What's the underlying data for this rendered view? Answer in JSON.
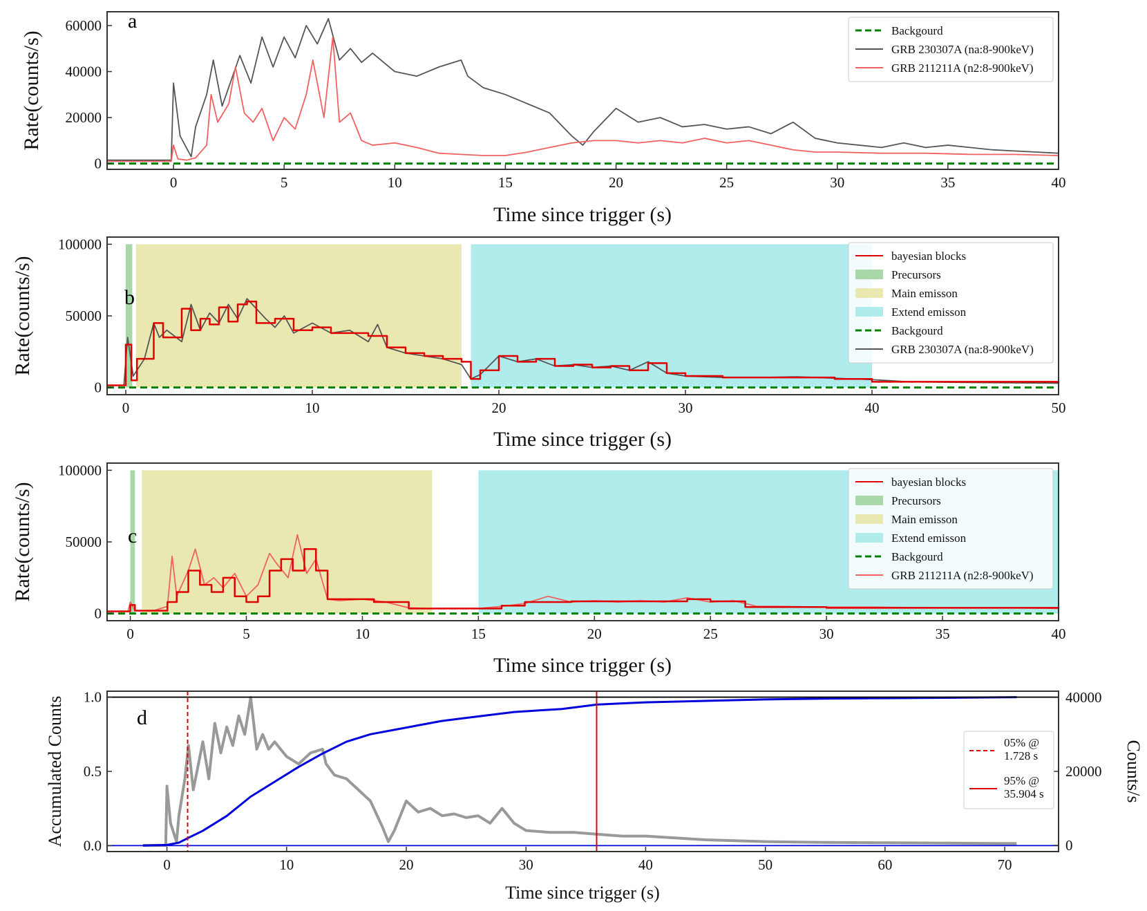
{
  "colors": {
    "background_green": "#008000",
    "grb230307a": "#555555",
    "grb211211a": "#f26060",
    "bayesian": "#e00000",
    "precursor": "#a8d8a8",
    "main": "#e8e8b0",
    "extend": "#b0ecec",
    "accum": "#0000dd",
    "counts": "#999999",
    "marker": "#e00000"
  },
  "chart_data": [
    {
      "id": "a",
      "type": "line",
      "panel_letter": "a",
      "xlabel": "Time since trigger (s)",
      "ylabel": "Rate(counts/s)",
      "xlim": [
        -3,
        40
      ],
      "ylim": [
        -2500,
        66000
      ],
      "xticks": [
        0,
        5,
        10,
        15,
        20,
        25,
        30,
        35,
        40
      ],
      "yticks": [
        0,
        20000,
        40000,
        60000
      ],
      "legend_position": "top-right",
      "legend": [
        "Backgourd",
        "GRB 230307A (na:8-900keV)",
        "GRB 211211A (n2:8-900keV)"
      ],
      "series": [
        {
          "name": "Backgourd",
          "style": "dashed",
          "color": "#008000",
          "x": [
            -3,
            40
          ],
          "y": [
            0,
            0
          ]
        },
        {
          "name": "GRB 230307A (na:8-900keV)",
          "color": "#555555",
          "x": [
            -3,
            -0.1,
            0,
            0.3,
            0.8,
            1,
            1.5,
            1.8,
            2.2,
            3,
            3.5,
            4,
            4.5,
            5,
            5.5,
            6,
            6.5,
            7,
            7.5,
            8,
            8.5,
            9,
            10,
            11,
            12,
            13,
            13.3,
            14,
            15,
            16,
            17,
            18,
            18.5,
            19,
            20,
            21,
            22,
            23,
            24,
            25,
            26,
            27,
            28,
            29,
            30,
            31,
            32,
            33,
            34,
            35,
            36,
            37,
            38,
            39,
            40
          ],
          "y": [
            1500,
            1500,
            35000,
            12000,
            3000,
            16000,
            30000,
            45000,
            25000,
            47000,
            35000,
            55000,
            42000,
            55000,
            46000,
            60000,
            52000,
            63000,
            45000,
            50000,
            44000,
            48000,
            40000,
            38000,
            42000,
            45000,
            38000,
            33000,
            30000,
            26000,
            22000,
            12000,
            8000,
            14000,
            24000,
            18000,
            20000,
            16000,
            17000,
            15000,
            16000,
            13000,
            18000,
            11000,
            9000,
            8000,
            7000,
            9000,
            7000,
            8000,
            7000,
            6000,
            5500,
            5000,
            4500
          ]
        },
        {
          "name": "GRB 211211A (n2:8-900keV)",
          "color": "#f26060",
          "x": [
            -3,
            -0.1,
            0,
            0.2,
            0.6,
            1,
            1.5,
            1.7,
            2,
            2.5,
            2.8,
            3.2,
            3.6,
            4,
            4.5,
            5,
            5.5,
            6,
            6.3,
            6.8,
            7.2,
            7.5,
            8,
            8.5,
            9,
            10,
            11,
            12,
            13,
            14,
            15,
            16,
            17,
            18,
            19,
            20,
            21,
            22,
            23,
            24,
            25,
            26,
            27,
            28,
            29,
            30,
            32,
            34,
            36,
            38,
            40
          ],
          "y": [
            1000,
            1000,
            8000,
            2000,
            1500,
            2500,
            8000,
            30000,
            18000,
            26000,
            42000,
            22000,
            18000,
            24000,
            10000,
            20000,
            15000,
            30000,
            45000,
            20000,
            55000,
            18000,
            22000,
            10000,
            8000,
            9000,
            7000,
            4500,
            4000,
            3500,
            3500,
            5000,
            7000,
            9000,
            10000,
            10000,
            9000,
            10000,
            9000,
            11000,
            9000,
            10000,
            8000,
            6000,
            5000,
            5000,
            4500,
            4500,
            4000,
            4000,
            3500
          ]
        }
      ]
    },
    {
      "id": "b",
      "type": "line",
      "panel_letter": "b",
      "xlabel": "Time since trigger (s)",
      "ylabel": "Rate(counts/s)",
      "xlim": [
        -1,
        50
      ],
      "ylim": [
        -5000,
        105000
      ],
      "xticks": [
        0,
        10,
        20,
        30,
        40,
        50
      ],
      "yticks": [
        0,
        50000,
        100000
      ],
      "legend_position": "top-right",
      "legend": [
        "bayesian blocks",
        "Precursors",
        "Main emisson",
        "Extend emisson",
        "Backgourd",
        "GRB 230307A (na:8-900keV)"
      ],
      "regions": [
        {
          "name": "Precursors",
          "x0": 0.0,
          "x1": 0.35,
          "color": "#a8d8a8"
        },
        {
          "name": "Main emisson",
          "x0": 0.55,
          "x1": 18.0,
          "color": "#e8e8b0"
        },
        {
          "name": "Extend emisson",
          "x0": 18.5,
          "x1": 40.0,
          "color": "#b0ecec"
        }
      ],
      "series": [
        {
          "name": "Backgourd",
          "style": "dashed",
          "color": "#008000",
          "x": [
            -1,
            50
          ],
          "y": [
            0,
            0
          ]
        },
        {
          "name": "GRB 230307A (na:8-900keV)",
          "color": "#555555",
          "x": [
            -1,
            -0.1,
            0.1,
            0.4,
            1,
            1.5,
            1.8,
            2.2,
            3,
            3.5,
            4,
            4.5,
            5,
            5.5,
            6,
            6.5,
            7,
            7.5,
            8,
            8.5,
            9,
            10,
            11,
            12,
            13,
            13.5,
            14,
            15,
            16,
            17,
            18,
            18.5,
            19,
            20,
            21,
            22,
            23,
            24,
            25,
            26,
            27,
            28,
            29,
            30,
            32,
            34,
            36,
            38,
            40,
            42,
            45,
            48,
            50
          ],
          "y": [
            1500,
            1500,
            35000,
            8000,
            20000,
            45000,
            35000,
            40000,
            32000,
            58000,
            40000,
            52000,
            45000,
            58000,
            48000,
            62000,
            55000,
            48000,
            42000,
            50000,
            38000,
            45000,
            38000,
            40000,
            32000,
            44000,
            28000,
            24000,
            22000,
            20000,
            16000,
            6000,
            9000,
            22000,
            18000,
            20000,
            15000,
            16000,
            14000,
            15000,
            12000,
            18000,
            10000,
            8000,
            7000,
            7000,
            7500,
            6500,
            5500,
            4000,
            3500,
            3200,
            3000
          ]
        },
        {
          "name": "bayesian blocks",
          "color": "#e00000",
          "step": true,
          "x": [
            -1,
            0,
            0.3,
            0.6,
            1.5,
            2,
            3,
            3.5,
            4,
            4.5,
            5,
            5.5,
            6,
            6.5,
            7,
            8,
            9,
            10,
            11,
            12,
            13,
            14,
            15,
            16,
            17,
            18,
            18.5,
            19,
            20,
            21,
            22,
            23,
            24,
            25,
            26,
            27,
            28,
            29,
            30,
            32,
            34,
            36,
            38,
            40,
            50
          ],
          "y": [
            1500,
            30000,
            5000,
            20000,
            45000,
            35000,
            55000,
            40000,
            48000,
            44000,
            56000,
            46000,
            58000,
            60000,
            45000,
            48000,
            40000,
            42000,
            38000,
            38000,
            36000,
            28000,
            24000,
            22000,
            20000,
            18000,
            6000,
            12000,
            22000,
            18000,
            20000,
            15000,
            16000,
            14000,
            15000,
            12000,
            17000,
            10000,
            8000,
            7000,
            7000,
            7000,
            6000,
            4000,
            3000
          ]
        }
      ]
    },
    {
      "id": "c",
      "type": "line",
      "panel_letter": "c",
      "xlabel": "Time since trigger (s)",
      "ylabel": "Rate(counts/s)",
      "xlim": [
        -1,
        40
      ],
      "ylim": [
        -5000,
        105000
      ],
      "xticks": [
        0,
        5,
        10,
        15,
        20,
        25,
        30,
        35,
        40
      ],
      "yticks": [
        0,
        50000,
        100000
      ],
      "legend_position": "top-right",
      "legend": [
        "bayesian blocks",
        "Precursors",
        "Main emisson",
        "Extend emisson",
        "Backgourd",
        "GRB 211211A (n2:8-900keV)"
      ],
      "regions": [
        {
          "name": "Precursors",
          "x0": 0.0,
          "x1": 0.2,
          "color": "#a8d8a8"
        },
        {
          "name": "Main emisson",
          "x0": 0.5,
          "x1": 13.0,
          "color": "#e8e8b0"
        },
        {
          "name": "Extend emisson",
          "x0": 15.0,
          "x1": 40.0,
          "color": "#b0ecec"
        }
      ],
      "series": [
        {
          "name": "Backgourd",
          "style": "dashed",
          "color": "#008000",
          "x": [
            -1,
            40
          ],
          "y": [
            0,
            0
          ]
        },
        {
          "name": "GRB 211211A (n2:8-900keV)",
          "color": "#f26060",
          "x": [
            -1,
            -0.1,
            0,
            0.2,
            1,
            1.6,
            1.8,
            2,
            2.5,
            2.8,
            3.2,
            3.6,
            4,
            4.5,
            5,
            5.5,
            6,
            6.3,
            6.8,
            7.2,
            7.6,
            8,
            8.5,
            9,
            10,
            11,
            12,
            13,
            14,
            15,
            16,
            17,
            18,
            19,
            20,
            21,
            22,
            23,
            24,
            25,
            26,
            27,
            28,
            30,
            32,
            35,
            38,
            40
          ],
          "y": [
            1500,
            1500,
            8000,
            2000,
            2000,
            5000,
            40000,
            12000,
            30000,
            45000,
            20000,
            25000,
            18000,
            28000,
            12000,
            20000,
            42000,
            35000,
            25000,
            55000,
            28000,
            38000,
            10000,
            9000,
            10000,
            8000,
            4000,
            3500,
            3500,
            3500,
            5000,
            7000,
            12000,
            8000,
            9000,
            8000,
            9000,
            8000,
            11000,
            8000,
            9000,
            5000,
            5000,
            4500,
            4500,
            4000,
            4000,
            3500
          ]
        },
        {
          "name": "bayesian blocks",
          "color": "#e00000",
          "step": true,
          "x": [
            -1,
            0,
            0.2,
            1.6,
            2,
            2.5,
            3,
            3.5,
            4,
            4.5,
            5,
            5.5,
            6,
            6.5,
            7,
            7.5,
            8,
            8.5,
            10.5,
            12,
            15,
            16,
            17,
            19,
            24,
            25,
            26.5,
            30,
            40
          ],
          "y": [
            1500,
            6000,
            2000,
            8000,
            15000,
            30000,
            20000,
            15000,
            25000,
            12000,
            8000,
            12000,
            30000,
            38000,
            30000,
            45000,
            30000,
            10000,
            8000,
            3500,
            3500,
            5500,
            8000,
            8500,
            10000,
            8500,
            4500,
            4000,
            3500
          ]
        }
      ]
    },
    {
      "id": "d",
      "type": "line",
      "panel_letter": "d",
      "xlabel": "Time since trigger (s)",
      "ylabel": "Accumulated Counts",
      "y2label": "Counts/s",
      "xlim": [
        -5,
        74.5
      ],
      "ylim": [
        -0.04,
        1.04
      ],
      "y2lim": [
        0,
        40000
      ],
      "xticks": [
        0,
        10,
        20,
        30,
        40,
        50,
        60,
        70
      ],
      "yticks": [
        0.0,
        0.5,
        1.0
      ],
      "y2ticks": [
        0,
        20000,
        40000
      ],
      "legend_position": "right",
      "legend": [
        "05% @\n1.728 s",
        "95% @\n35.904 s"
      ],
      "markers": [
        {
          "label": "05% @ 1.728 s",
          "x": 1.728,
          "style": "dashed"
        },
        {
          "label": "95% @ 35.904 s",
          "x": 35.904,
          "style": "solid"
        }
      ],
      "series": [
        {
          "name": "Counts/s",
          "axis": "right",
          "color": "#999999",
          "x": [
            -2,
            -0.1,
            0,
            0.3,
            0.8,
            1,
            1.5,
            1.8,
            2.2,
            3,
            3.5,
            4,
            4.5,
            5,
            5.5,
            6,
            6.5,
            7,
            7.5,
            8,
            8.5,
            9,
            10,
            11,
            12,
            13,
            13.3,
            14,
            15,
            16,
            17,
            18,
            18.5,
            19,
            20,
            21,
            22,
            23,
            24,
            25,
            26,
            27,
            28,
            29,
            30,
            32,
            34,
            36,
            38,
            40,
            45,
            50,
            55,
            60,
            65,
            70,
            71
          ],
          "y": [
            0,
            0,
            16000,
            6000,
            1000,
            8000,
            18000,
            27000,
            15000,
            28000,
            18000,
            33000,
            25000,
            32000,
            27000,
            35000,
            30000,
            40000,
            26000,
            30000,
            26000,
            28000,
            24000,
            22000,
            25000,
            26000,
            22000,
            19000,
            18000,
            15000,
            12000,
            5000,
            1000,
            4000,
            12000,
            9000,
            10000,
            8000,
            8500,
            7500,
            8000,
            6000,
            10000,
            6000,
            4000,
            3500,
            3500,
            3000,
            2500,
            2500,
            1500,
            1000,
            800,
            700,
            600,
            500,
            500
          ]
        },
        {
          "name": "Accumulated Counts",
          "axis": "left",
          "color": "#0000dd",
          "x": [
            -2,
            0,
            1,
            1.728,
            3,
            5,
            7,
            9,
            11,
            13,
            15,
            17,
            19,
            21,
            23,
            25,
            27,
            29,
            31,
            33,
            35.904,
            40,
            45,
            50,
            55,
            60,
            65,
            71
          ],
          "y": [
            0,
            0.005,
            0.02,
            0.05,
            0.1,
            0.2,
            0.33,
            0.43,
            0.53,
            0.62,
            0.7,
            0.75,
            0.78,
            0.81,
            0.84,
            0.86,
            0.88,
            0.9,
            0.91,
            0.92,
            0.95,
            0.965,
            0.975,
            0.985,
            0.99,
            0.993,
            0.996,
            1.0
          ]
        },
        {
          "name": "baseline",
          "axis": "left",
          "color": "#0000dd",
          "x": [
            -5,
            74.5
          ],
          "y": [
            0,
            0
          ]
        }
      ]
    }
  ]
}
